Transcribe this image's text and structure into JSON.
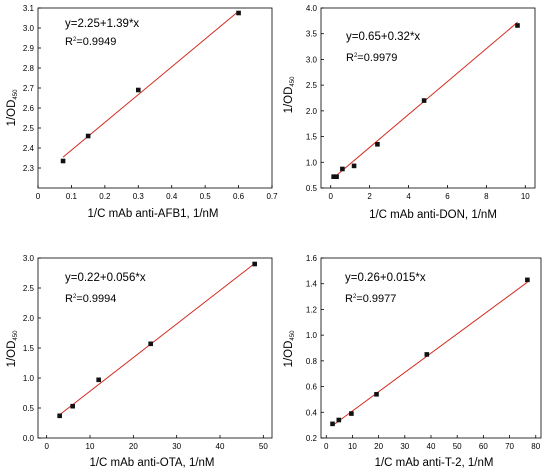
{
  "colors": {
    "fit_line": "#d42a1e",
    "marker": "#111111",
    "axis": "#000000"
  },
  "chart_data": [
    {
      "type": "scatter",
      "title": "",
      "xlabel": "1/C mAb anti-AFB1, 1/nM",
      "ylabel": "1/OD",
      "ylabel_sub": "450",
      "equation": "y=2.25+1.39*x",
      "r2_prefix": "R",
      "r2_sup": "2",
      "r2_value": "=0.9949",
      "xlim": [
        0,
        0.7
      ],
      "ylim": [
        2.2,
        3.1
      ],
      "xticks": [
        0,
        0.1,
        0.2,
        0.3,
        0.4,
        0.5,
        0.6,
        0.7
      ],
      "yticks": [
        2.3,
        2.4,
        2.5,
        2.6,
        2.7,
        2.8,
        2.9,
        3.0,
        3.1
      ],
      "xtick_labels": [
        "0",
        "0.1",
        "0.2",
        "0.3",
        "0.4",
        "0.5",
        "0.6",
        "0.7"
      ],
      "ytick_labels": [
        "2.3",
        "2.4",
        "2.5",
        "2.6",
        "2.7",
        "2.8",
        "2.9",
        "3.0",
        "3.1"
      ],
      "x": [
        0.075,
        0.15,
        0.3,
        0.6
      ],
      "y": [
        2.335,
        2.46,
        2.69,
        3.075
      ],
      "fit": {
        "intercept": 2.25,
        "slope": 1.39
      },
      "fit_range": [
        0.075,
        0.6
      ]
    },
    {
      "type": "scatter",
      "title": "",
      "xlabel": "1/C mAb anti-DON, 1/nM",
      "ylabel": "1/OD",
      "ylabel_sub": "450",
      "equation": "y=0.65+0.32*x",
      "r2_prefix": "R",
      "r2_sup": "2",
      "r2_value": "=0.9979",
      "xlim": [
        -0.5,
        10.5
      ],
      "ylim": [
        0.5,
        4.0
      ],
      "xticks": [
        0,
        2,
        4,
        6,
        8,
        10
      ],
      "yticks": [
        0.5,
        1.0,
        1.5,
        2.0,
        2.5,
        3.0,
        3.5,
        4.0
      ],
      "xtick_labels": [
        "0",
        "2",
        "4",
        "6",
        "8",
        "10"
      ],
      "ytick_labels": [
        "0.5",
        "1.0",
        "1.5",
        "2.0",
        "2.5",
        "3.0",
        "3.5",
        "4.0"
      ],
      "x": [
        0.15,
        0.3,
        0.6,
        1.2,
        2.4,
        4.8,
        9.6
      ],
      "y": [
        0.72,
        0.72,
        0.87,
        0.93,
        1.35,
        2.2,
        3.66
      ],
      "fit": {
        "intercept": 0.65,
        "slope": 0.32
      },
      "fit_range": [
        0.1,
        9.6
      ]
    },
    {
      "type": "scatter",
      "title": "",
      "xlabel": "1/C mAb anti-OTA, 1/nM",
      "ylabel": "1/OD",
      "ylabel_sub": "450",
      "equation": "y=0.22+0.056*x",
      "r2_prefix": "R",
      "r2_sup": "2",
      "r2_value": "=0.9994",
      "xlim": [
        -2,
        52
      ],
      "ylim": [
        0.0,
        3.0
      ],
      "xticks": [
        0,
        10,
        20,
        30,
        40,
        50
      ],
      "yticks": [
        0.0,
        0.5,
        1.0,
        1.5,
        2.0,
        2.5,
        3.0
      ],
      "xtick_labels": [
        "0",
        "10",
        "20",
        "30",
        "40",
        "50"
      ],
      "ytick_labels": [
        "0.0",
        "0.5",
        "1.0",
        "1.5",
        "2.0",
        "2.5",
        "3.0"
      ],
      "x": [
        3,
        6,
        12,
        24,
        48
      ],
      "y": [
        0.37,
        0.53,
        0.97,
        1.57,
        2.9
      ],
      "fit": {
        "intercept": 0.22,
        "slope": 0.056
      },
      "fit_range": [
        3,
        48
      ]
    },
    {
      "type": "scatter",
      "title": "",
      "xlabel": "1/C mAb anti-T-2, 1/nM",
      "ylabel": "1/OD",
      "ylabel_sub": "450",
      "equation": "y=0.26+0.015*x",
      "r2_prefix": "R",
      "r2_sup": "2",
      "r2_value": "=0.9977",
      "xlim": [
        -2,
        82
      ],
      "ylim": [
        0.2,
        1.6
      ],
      "xticks": [
        0,
        10,
        20,
        30,
        40,
        50,
        60,
        70,
        80
      ],
      "yticks": [
        0.2,
        0.4,
        0.6,
        0.8,
        1.0,
        1.2,
        1.4,
        1.6
      ],
      "xtick_labels": [
        "0",
        "10",
        "20",
        "30",
        "40",
        "50",
        "60",
        "70",
        "80"
      ],
      "ytick_labels": [
        "0.2",
        "0.4",
        "0.6",
        "0.8",
        "1.0",
        "1.2",
        "1.4",
        "1.6"
      ],
      "x": [
        2.4,
        4.8,
        9.6,
        19.2,
        38.4,
        76.8
      ],
      "y": [
        0.31,
        0.34,
        0.39,
        0.54,
        0.85,
        1.43
      ],
      "fit": {
        "intercept": 0.26,
        "slope": 0.015
      },
      "fit_range": [
        2.4,
        76.8
      ]
    }
  ]
}
